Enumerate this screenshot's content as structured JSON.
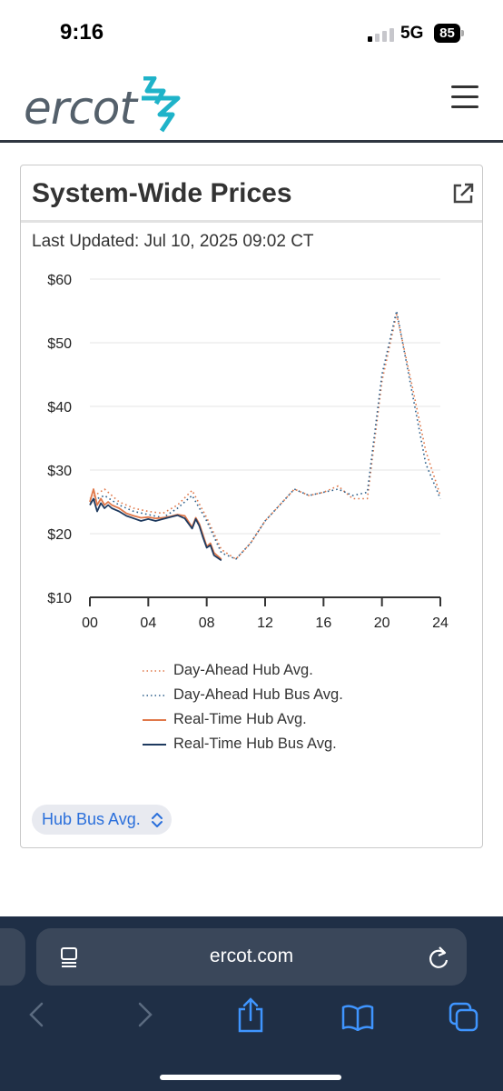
{
  "status_bar": {
    "time": "9:16",
    "network": "5G",
    "battery": "85"
  },
  "header": {
    "logo_text": "ercot",
    "menu_icon": "hamburger-menu-icon"
  },
  "card": {
    "title": "System-Wide Prices",
    "external_link_icon": "external-link-icon",
    "last_updated": "Last Updated: Jul 10, 2025 09:02 CT",
    "selector_label": "Hub Bus Avg."
  },
  "chart_data": {
    "type": "line",
    "title": "",
    "xlabel": "",
    "ylabel": "",
    "x_ticks": [
      "00",
      "04",
      "08",
      "12",
      "16",
      "20",
      "24"
    ],
    "y_ticks": [
      "$60",
      "$50",
      "$40",
      "$30",
      "$20",
      "$10"
    ],
    "xlim": [
      0,
      24
    ],
    "ylim": [
      10,
      60
    ],
    "grid": true,
    "legend_position": "bottom",
    "series": [
      {
        "name": "Day-Ahead Hub Avg.",
        "style": "dotted",
        "color": "#e0784a",
        "x": [
          0,
          1,
          2,
          3,
          4,
          5,
          6,
          7,
          8,
          9,
          10,
          11,
          12,
          13,
          14,
          15,
          16,
          17,
          18,
          19,
          20,
          21,
          22,
          23,
          24
        ],
        "y": [
          25.5,
          27.0,
          25.0,
          24.0,
          23.5,
          23.2,
          24.5,
          26.8,
          22.5,
          17.5,
          16.0,
          18.5,
          22.0,
          24.5,
          27.0,
          26.0,
          26.5,
          27.5,
          25.5,
          25.5,
          44.0,
          54.5,
          44.0,
          33.0,
          26.0
        ]
      },
      {
        "name": "Day-Ahead Hub Bus Avg.",
        "style": "dotted",
        "color": "#2d5f8a",
        "x": [
          0,
          1,
          2,
          3,
          4,
          5,
          6,
          7,
          8,
          9,
          10,
          11,
          12,
          13,
          14,
          15,
          16,
          17,
          18,
          19,
          20,
          21,
          22,
          23,
          24
        ],
        "y": [
          25.0,
          26.0,
          24.5,
          23.5,
          23.0,
          22.5,
          24.0,
          26.0,
          22.0,
          17.0,
          16.0,
          18.5,
          22.0,
          24.5,
          27.0,
          26.0,
          26.5,
          27.0,
          26.0,
          26.5,
          45.0,
          55.0,
          43.0,
          31.0,
          25.5
        ]
      },
      {
        "name": "Real-Time Hub Avg.",
        "style": "solid",
        "color": "#e0784a",
        "x": [
          0,
          0.25,
          0.5,
          0.75,
          1,
          1.25,
          1.5,
          2,
          2.5,
          3,
          3.5,
          4,
          4.5,
          5,
          5.5,
          6,
          6.5,
          7,
          7.25,
          7.5,
          7.75,
          8,
          8.25,
          8.5,
          9
        ],
        "y": [
          25.0,
          27.0,
          24.5,
          25.5,
          24.5,
          25.0,
          24.5,
          24.0,
          23.2,
          22.8,
          22.5,
          22.6,
          22.4,
          22.5,
          22.7,
          23.0,
          22.8,
          21.0,
          22.5,
          21.5,
          19.8,
          18.0,
          18.5,
          17.0,
          16.0
        ]
      },
      {
        "name": "Real-Time Hub Bus Avg.",
        "style": "solid",
        "color": "#1e3a5f",
        "x": [
          0,
          0.25,
          0.5,
          0.75,
          1,
          1.25,
          1.5,
          2,
          2.5,
          3,
          3.5,
          4,
          4.5,
          5,
          5.5,
          6,
          6.5,
          7,
          7.25,
          7.5,
          7.75,
          8,
          8.25,
          8.5,
          9
        ],
        "y": [
          24.5,
          25.5,
          23.5,
          24.8,
          24.0,
          24.5,
          24.0,
          23.5,
          22.8,
          22.4,
          22.0,
          22.3,
          22.0,
          22.3,
          22.6,
          22.9,
          22.4,
          20.8,
          22.3,
          21.2,
          19.4,
          17.8,
          18.2,
          16.6,
          15.8
        ]
      }
    ]
  },
  "browser": {
    "url": "ercot.com",
    "icons": [
      "reader-mode-icon",
      "reload-icon",
      "back-icon",
      "forward-icon",
      "share-icon",
      "bookmarks-icon",
      "tabs-icon"
    ]
  }
}
